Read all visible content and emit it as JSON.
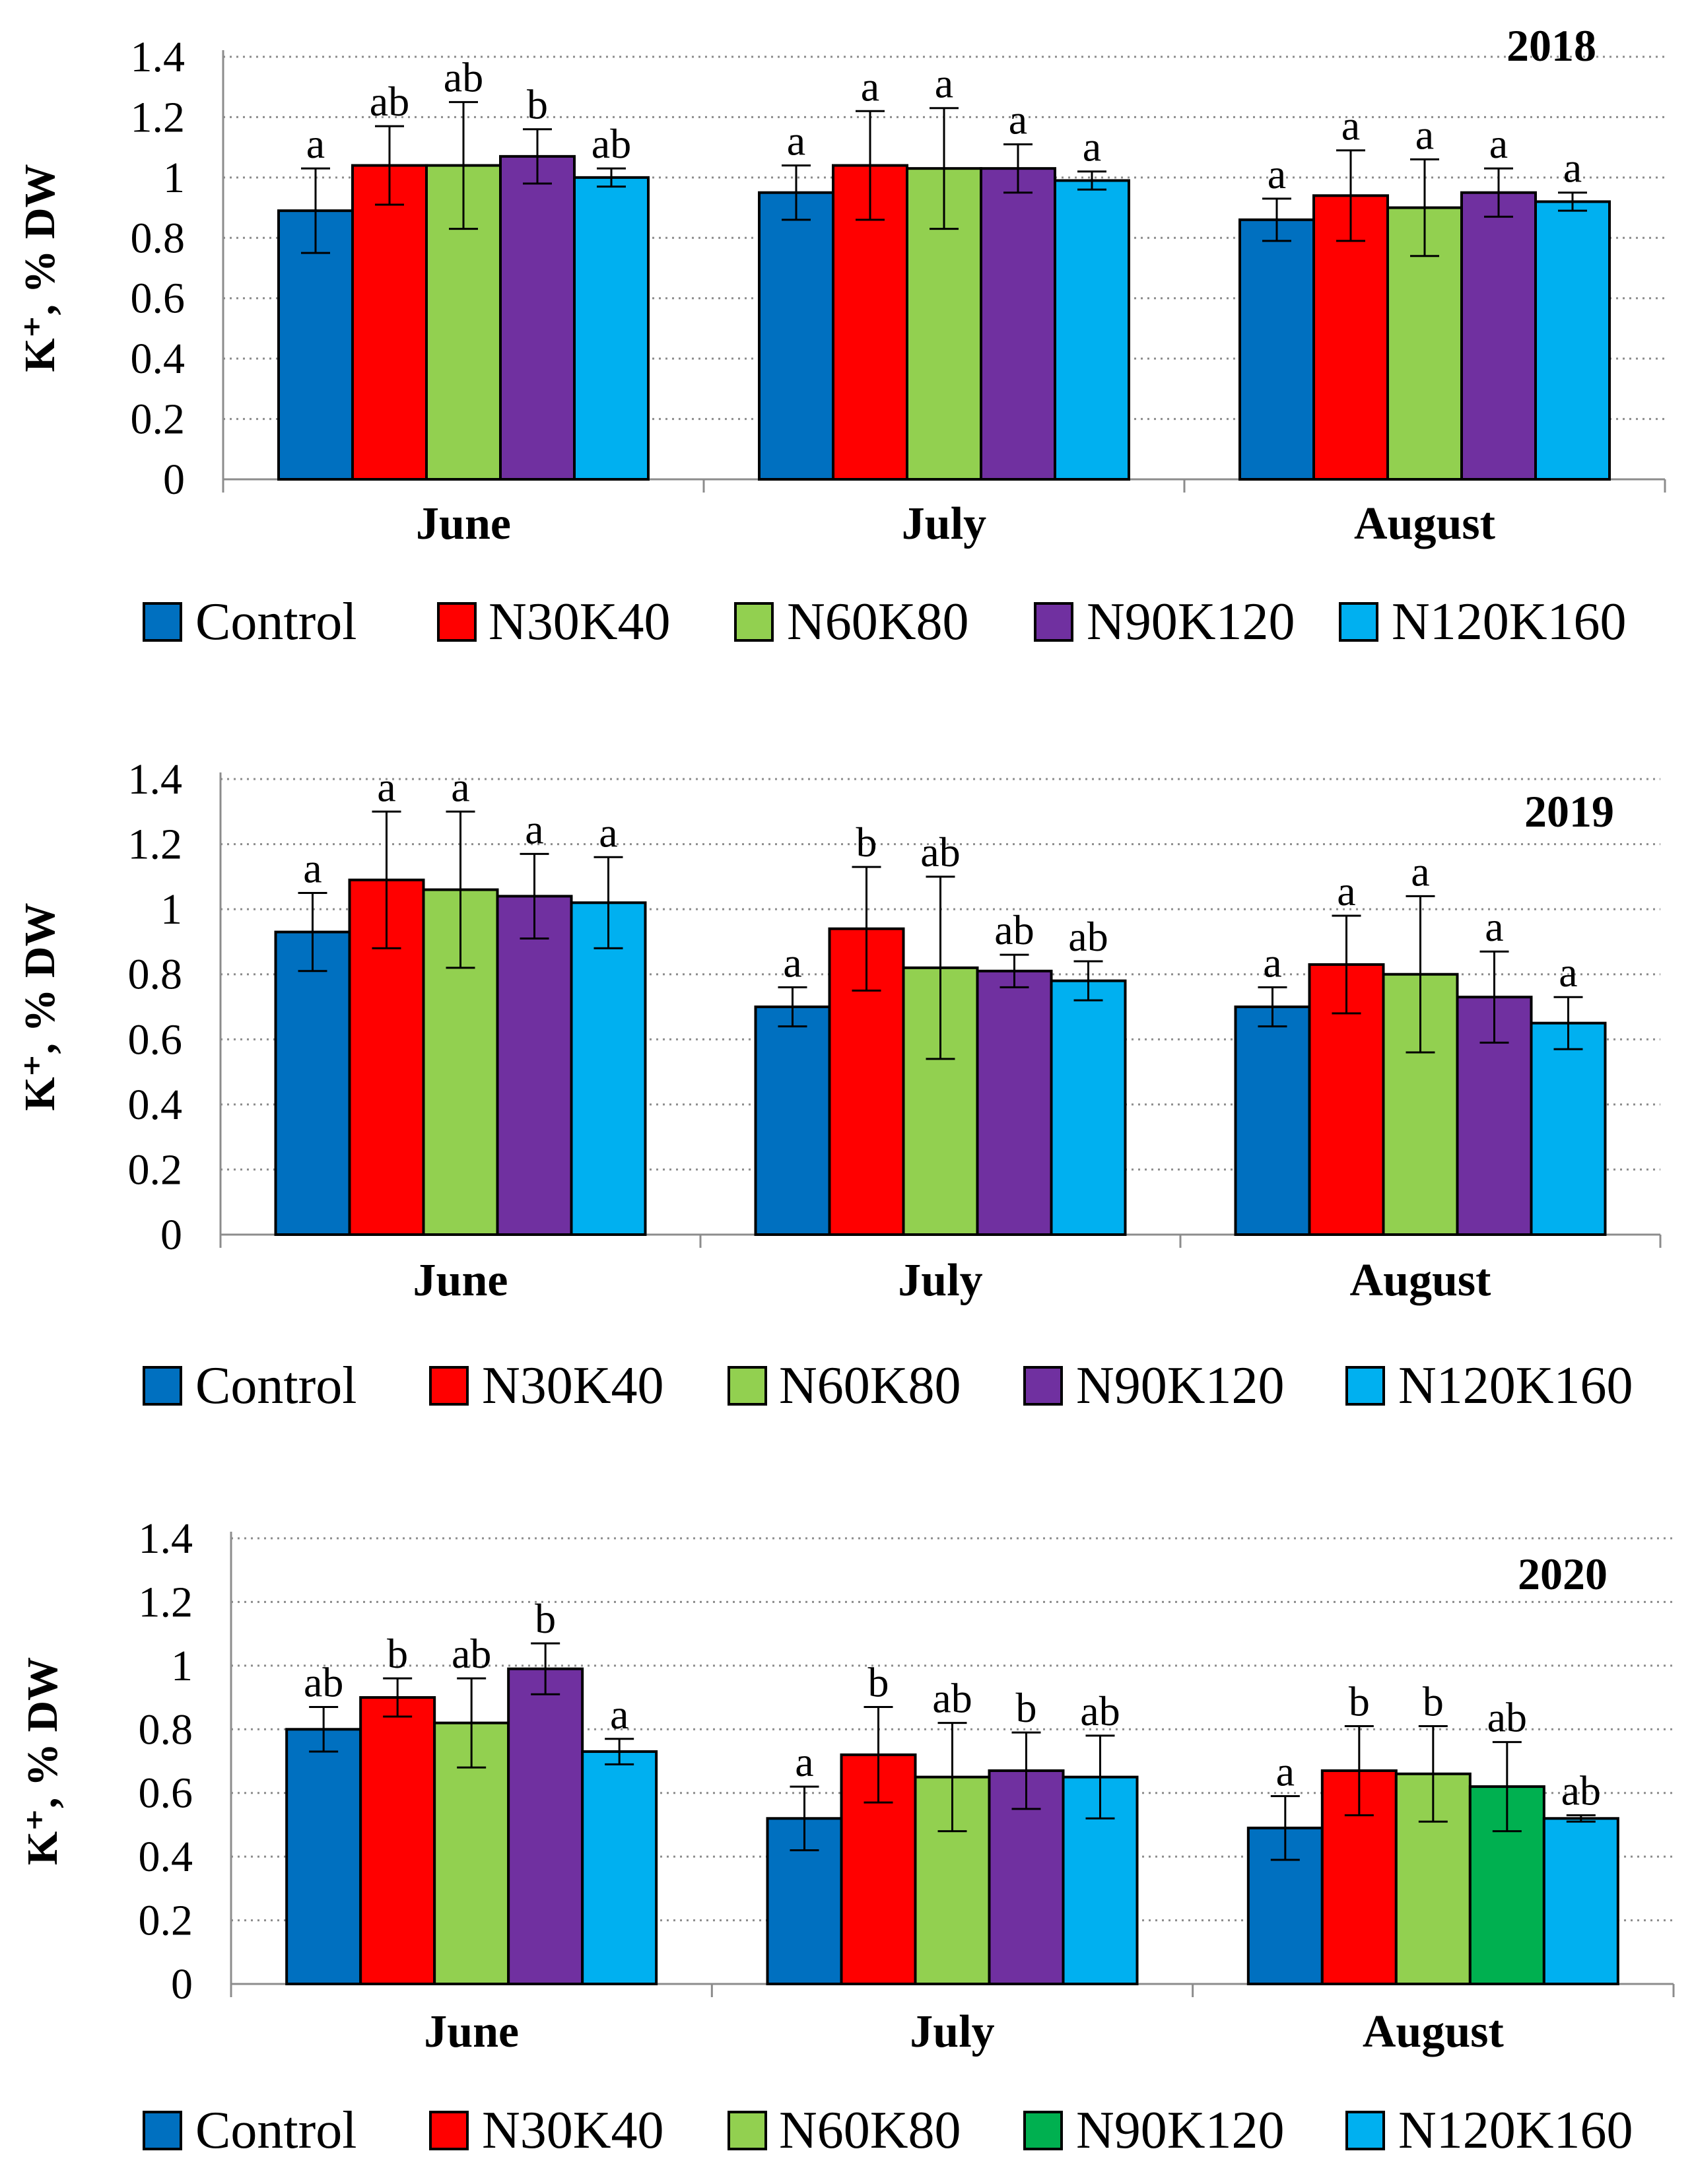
{
  "chart_data": [
    {
      "type": "bar",
      "title": "2018",
      "ylabel": "K⁺, % DW",
      "y_tick_labels": [
        "0",
        "0.2",
        "0.4",
        "0.6",
        "0.8",
        "1",
        "1.2",
        "1.4"
      ],
      "ylim": [
        0,
        1.4
      ],
      "grid": true,
      "categories": [
        "June",
        "July",
        "August"
      ],
      "series": [
        {
          "name": "Control",
          "color": "#0070C0",
          "values": [
            0.89,
            0.95,
            0.86
          ],
          "errors": [
            0.14,
            0.09,
            0.07
          ],
          "labels": [
            "a",
            "a",
            "a"
          ]
        },
        {
          "name": "N30K40",
          "color": "#FF0000",
          "values": [
            1.04,
            1.04,
            0.94
          ],
          "errors": [
            0.13,
            0.18,
            0.15
          ],
          "labels": [
            "ab",
            "a",
            "a"
          ]
        },
        {
          "name": "N60K80",
          "color": "#92D050",
          "values": [
            1.04,
            1.03,
            0.9
          ],
          "errors": [
            0.21,
            0.2,
            0.16
          ],
          "labels": [
            "ab",
            "a",
            "a"
          ]
        },
        {
          "name": "N90K120",
          "color": "#7030A0",
          "values": [
            1.07,
            1.03,
            0.95
          ],
          "errors": [
            0.09,
            0.08,
            0.08
          ],
          "labels": [
            "b",
            "a",
            "a"
          ]
        },
        {
          "name": "N120K160",
          "color": "#00B0F0",
          "values": [
            1.0,
            0.99,
            0.92
          ],
          "errors": [
            0.03,
            0.03,
            0.03
          ],
          "labels": [
            "ab",
            "a",
            "a"
          ]
        }
      ]
    },
    {
      "type": "bar",
      "title": "2019",
      "ylabel": "K⁺, % DW",
      "y_tick_labels": [
        "0",
        "0.2",
        "0.4",
        "0.6",
        "0.8",
        "1",
        "1.2",
        "1.4"
      ],
      "ylim": [
        0,
        1.4
      ],
      "grid": true,
      "categories": [
        "June",
        "July",
        "August"
      ],
      "series": [
        {
          "name": "Control",
          "color": "#0070C0",
          "values": [
            0.93,
            0.7,
            0.7
          ],
          "errors": [
            0.12,
            0.06,
            0.06
          ],
          "labels": [
            "a",
            "a",
            "a"
          ]
        },
        {
          "name": "N30K40",
          "color": "#FF0000",
          "values": [
            1.09,
            0.94,
            0.83
          ],
          "errors": [
            0.21,
            0.19,
            0.15
          ],
          "labels": [
            "a",
            "b",
            "a"
          ]
        },
        {
          "name": "N60K80",
          "color": "#92D050",
          "values": [
            1.06,
            0.82,
            0.8
          ],
          "errors": [
            0.24,
            0.28,
            0.24
          ],
          "labels": [
            "a",
            "ab",
            "a"
          ]
        },
        {
          "name": "N90K120",
          "color": "#7030A0",
          "values": [
            1.04,
            0.81,
            0.73
          ],
          "errors": [
            0.13,
            0.05,
            0.14
          ],
          "labels": [
            "a",
            "ab",
            "a"
          ]
        },
        {
          "name": "N120K160",
          "color": "#00B0F0",
          "values": [
            1.02,
            0.78,
            0.65
          ],
          "errors": [
            0.14,
            0.06,
            0.08
          ],
          "labels": [
            "a",
            "ab",
            "a"
          ]
        }
      ]
    },
    {
      "type": "bar",
      "title": "2020",
      "ylabel": "K⁺, % DW",
      "y_tick_labels": [
        "0",
        "0.2",
        "0.4",
        "0.6",
        "0.8",
        "1",
        "1.2",
        "1.4"
      ],
      "ylim": [
        0,
        1.4
      ],
      "grid": true,
      "categories": [
        "June",
        "July",
        "August"
      ],
      "series": [
        {
          "name": "Control",
          "color": "#0070C0",
          "values": [
            0.8,
            0.52,
            0.49
          ],
          "errors": [
            0.07,
            0.1,
            0.1
          ],
          "labels": [
            "ab",
            "a",
            "a"
          ]
        },
        {
          "name": "N30K40",
          "color": "#FF0000",
          "values": [
            0.9,
            0.72,
            0.67
          ],
          "errors": [
            0.06,
            0.15,
            0.14
          ],
          "labels": [
            "b",
            "b",
            "b"
          ]
        },
        {
          "name": "N60K80",
          "color": "#92D050",
          "values": [
            0.82,
            0.65,
            0.66
          ],
          "errors": [
            0.14,
            0.17,
            0.15
          ],
          "labels": [
            "ab",
            "ab",
            "b"
          ]
        },
        {
          "name": "N90K120",
          "color": "#7030A0",
          "legend_color": "#00B050",
          "point_colors": [
            "#7030A0",
            "#7030A0",
            "#00B050"
          ],
          "values": [
            0.99,
            0.67,
            0.62
          ],
          "errors": [
            0.08,
            0.12,
            0.14
          ],
          "labels": [
            "b",
            "b",
            "ab"
          ]
        },
        {
          "name": "N120K160",
          "color": "#00B0F0",
          "values": [
            0.73,
            0.65,
            0.52
          ],
          "errors": [
            0.04,
            0.13,
            0.01
          ],
          "labels": [
            "a",
            "ab",
            "ab"
          ]
        }
      ]
    }
  ]
}
